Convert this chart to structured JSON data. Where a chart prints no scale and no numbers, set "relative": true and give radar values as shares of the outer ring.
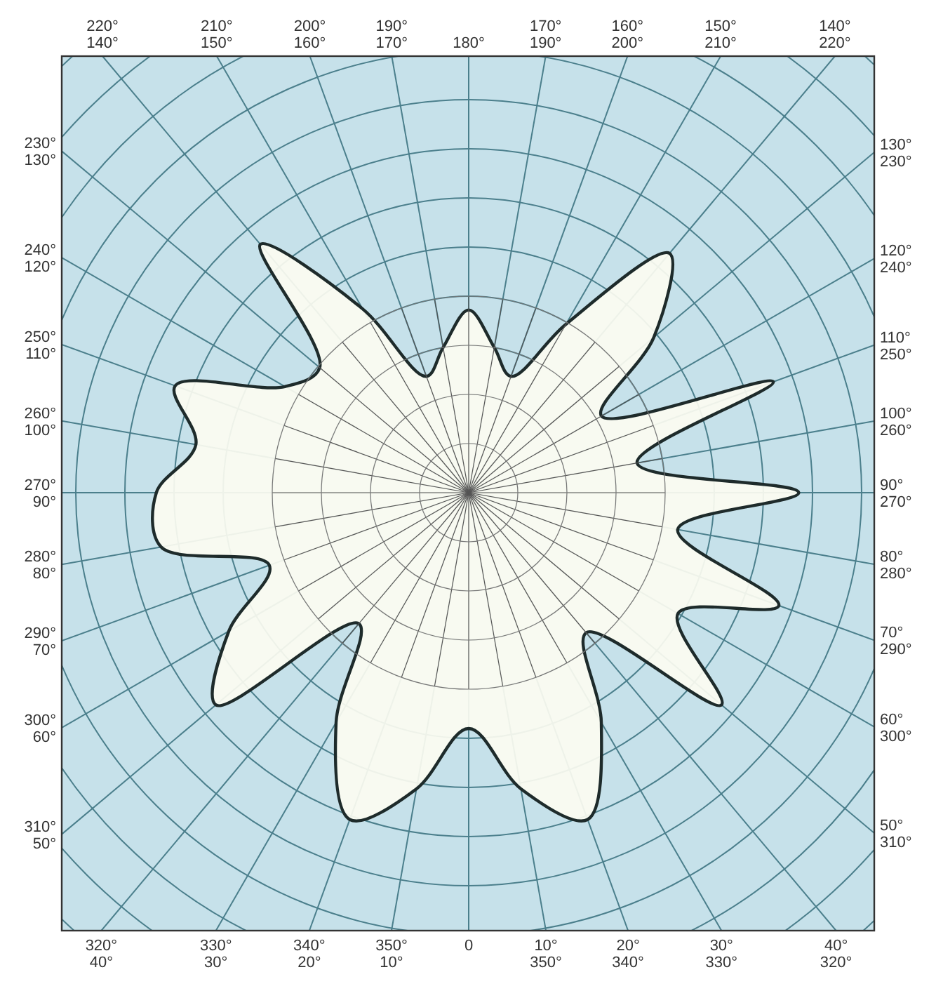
{
  "chart_data": {
    "type": "radar",
    "relative": true,
    "grid": true,
    "categories": [
      "180°",
      "170° 190°",
      "160° 200°",
      "150° 210°",
      "140° 220°",
      "130° 230°",
      "120° 240°",
      "110° 250°",
      "100° 260°",
      "90° 270°",
      "80° 280°",
      "70° 290°",
      "60° 300°",
      "50° 310°",
      "40° 320°",
      "30° 330°",
      "20° 340°",
      "10° 350°",
      "0",
      "350° 10°",
      "340° 20°",
      "330° 30°",
      "320° 40°",
      "310° 50°",
      "300° 60°",
      "290° 70°",
      "280° 80°",
      "270° 90°",
      "260° 100°",
      "250° 110°",
      "240° 120°",
      "230° 130°",
      "220° 140°",
      "210° 150°",
      "200° 160°",
      "190° 170°"
    ],
    "series": [
      {
        "color": "#1e2b2b",
        "values": [
          0.31,
          0.25,
          0.21,
          0.33,
          0.53,
          0.41,
          0.26,
          0.55,
          0.29,
          0.56,
          0.36,
          0.56,
          0.41,
          0.56,
          0.31,
          0.45,
          0.59,
          0.51,
          0.4,
          0.51,
          0.59,
          0.45,
          0.29,
          0.56,
          0.47,
          0.36,
          0.53,
          0.53,
          0.47,
          0.53,
          0.36,
          0.33,
          0.55,
          0.36,
          0.21,
          0.25
        ]
      }
    ]
  }
}
